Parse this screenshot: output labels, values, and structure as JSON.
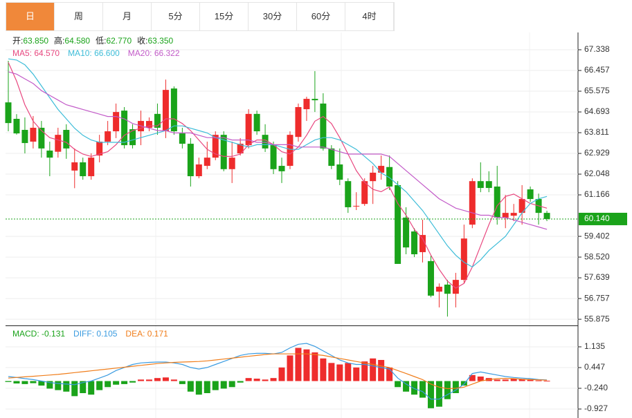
{
  "tabs": [
    "日",
    "周",
    "月",
    "5分",
    "15分",
    "30分",
    "60分",
    "4时"
  ],
  "active_tab": 0,
  "chart_data": [
    {
      "type": "candlestick",
      "info": [
        {
          "label": "开:",
          "value": "63.850"
        },
        {
          "label": "高:",
          "value": "64.580"
        },
        {
          "label": "低:",
          "value": "62.770"
        },
        {
          "label": "收:",
          "value": "63.350"
        }
      ],
      "up_color": "#ee2c2c",
      "down_color": "#1aa31a",
      "open": [
        65.1,
        64.4,
        63.93,
        63.43,
        64.02,
        63.05,
        63.0,
        63.93,
        62.2,
        62.55,
        61.96,
        62.84,
        63.43,
        63.87,
        64.75,
        63.96,
        63.87,
        64.02,
        64.61,
        63.87,
        65.69,
        63.78,
        63.34,
        61.96,
        62.4,
        62.75,
        63.72,
        62.26,
        62.93,
        63.28,
        64.61,
        63.72,
        63.28,
        62.4,
        62.4,
        63.63,
        64.81,
        65.25,
        65.05,
        63.14,
        62.46,
        61.75,
        60.7,
        60.78,
        61.75,
        62.11,
        62.35,
        61.58,
        60.2,
        59.61,
        58.73,
        58.35,
        57.05,
        57.35,
        56.96,
        57.55,
        59.9,
        61.75,
        61.75,
        61.52,
        60.2,
        60.28,
        60.4,
        61.4,
        60.99,
        60.4
      ],
      "high": [
        66.87,
        64.6,
        64.46,
        64.52,
        64.31,
        63.43,
        64.02,
        64.17,
        63.14,
        62.75,
        62.93,
        63.72,
        64.31,
        65.05,
        64.9,
        64.17,
        64.75,
        64.46,
        65.05,
        66.07,
        65.78,
        64.02,
        63.58,
        62.75,
        63.43,
        63.87,
        63.87,
        63.43,
        63.58,
        64.81,
        64.75,
        64.17,
        63.43,
        62.75,
        63.87,
        65.05,
        65.34,
        66.43,
        65.49,
        63.28,
        63.14,
        61.87,
        61.28,
        61.87,
        62.4,
        62.84,
        62.84,
        61.75,
        60.64,
        59.75,
        60.11,
        58.58,
        57.4,
        57.55,
        57.85,
        59.9,
        61.87,
        62.55,
        62.17,
        62.4,
        61.16,
        60.78,
        61.58,
        61.52,
        61.22,
        60.49
      ],
      "low": [
        63.87,
        63.73,
        62.93,
        63.14,
        62.75,
        61.96,
        62.75,
        62.7,
        61.45,
        61.81,
        61.81,
        62.55,
        63.28,
        63.58,
        63.14,
        63.14,
        63.28,
        63.87,
        63.72,
        63.58,
        63.72,
        63.14,
        61.52,
        61.87,
        62.26,
        62.64,
        62.17,
        61.67,
        62.84,
        63.14,
        63.72,
        62.99,
        62.05,
        61.67,
        62.26,
        63.43,
        64.31,
        64.69,
        63.05,
        62.26,
        61.58,
        60.4,
        60.52,
        60.7,
        60.78,
        61.81,
        61.37,
        58.23,
        58.64,
        58.52,
        58.29,
        56.81,
        56.38,
        55.99,
        56.38,
        57.4,
        59.75,
        61.28,
        61.28,
        59.9,
        59.75,
        60.05,
        59.9,
        60.87,
        59.9,
        60.05
      ],
      "close": [
        64.22,
        63.78,
        63.37,
        64.02,
        63.14,
        62.75,
        63.72,
        63.14,
        62.55,
        61.96,
        62.75,
        63.43,
        63.87,
        64.69,
        63.28,
        63.28,
        64.31,
        64.31,
        64.02,
        65.63,
        63.87,
        63.34,
        61.96,
        62.46,
        62.75,
        63.72,
        62.26,
        62.75,
        63.34,
        64.61,
        63.87,
        63.14,
        62.26,
        62.17,
        63.72,
        64.9,
        65.25,
        65.19,
        63.14,
        62.4,
        61.81,
        60.64,
        60.7,
        61.75,
        62.11,
        62.4,
        61.52,
        58.23,
        58.93,
        58.64,
        59.46,
        56.88,
        57.26,
        56.96,
        57.55,
        59.31,
        61.75,
        61.46,
        61.46,
        60.2,
        60.4,
        60.4,
        60.99,
        60.99,
        60.4,
        60.14
      ],
      "series": [
        {
          "name": "MA5",
          "legend_value": "64.570",
          "color": "#e8477f",
          "values": [
            66.8,
            66.0,
            65.0,
            64.3,
            63.9,
            63.6,
            63.5,
            63.4,
            63.1,
            62.9,
            62.8,
            62.9,
            63.0,
            63.3,
            63.7,
            63.9,
            64.0,
            64.1,
            64.1,
            64.4,
            64.4,
            64.2,
            63.9,
            63.5,
            63.1,
            62.9,
            62.8,
            62.8,
            62.9,
            63.3,
            63.5,
            63.5,
            63.3,
            63.0,
            62.9,
            63.2,
            63.7,
            64.3,
            64.5,
            64.2,
            63.6,
            62.9,
            62.2,
            61.7,
            61.4,
            61.3,
            61.5,
            60.8,
            60.3,
            59.7,
            59.3,
            58.6,
            58.0,
            57.5,
            57.2,
            57.4,
            58.1,
            59.0,
            59.9,
            60.7,
            61.1,
            61.2,
            61.0,
            60.8,
            60.7,
            60.6
          ]
        },
        {
          "name": "MA10",
          "legend_value": "66.600",
          "color": "#3cbcd8",
          "values": [
            66.95,
            66.9,
            66.7,
            66.3,
            65.8,
            65.3,
            64.8,
            64.4,
            64.0,
            63.7,
            63.5,
            63.4,
            63.4,
            63.4,
            63.4,
            63.5,
            63.6,
            63.7,
            63.8,
            63.9,
            64.1,
            64.1,
            64.0,
            63.9,
            63.8,
            63.6,
            63.5,
            63.4,
            63.3,
            63.2,
            63.3,
            63.3,
            63.3,
            63.2,
            63.1,
            63.1,
            63.3,
            63.5,
            63.6,
            63.6,
            63.5,
            63.3,
            63.1,
            62.8,
            62.5,
            62.1,
            61.9,
            61.6,
            61.3,
            60.9,
            60.5,
            60.0,
            59.5,
            59.0,
            58.6,
            58.3,
            58.1,
            58.4,
            58.8,
            59.1,
            59.4,
            59.9,
            60.4,
            60.8,
            61.0,
            61.1
          ]
        },
        {
          "name": "MA20",
          "legend_value": "66.322",
          "color": "#c25ac8",
          "values": [
            66.4,
            66.3,
            66.1,
            65.9,
            65.6,
            65.4,
            65.2,
            65.0,
            64.9,
            64.8,
            64.7,
            64.6,
            64.5,
            64.5,
            64.4,
            64.2,
            64.1,
            64.0,
            63.9,
            63.9,
            63.8,
            63.8,
            63.8,
            63.7,
            63.6,
            63.6,
            63.6,
            63.5,
            63.5,
            63.5,
            63.4,
            63.4,
            63.3,
            63.3,
            63.3,
            63.2,
            63.2,
            63.2,
            63.2,
            63.1,
            63.0,
            62.9,
            62.9,
            62.9,
            62.9,
            62.9,
            62.8,
            62.5,
            62.2,
            61.9,
            61.6,
            61.3,
            61.0,
            60.8,
            60.6,
            60.5,
            60.4,
            60.3,
            60.3,
            60.2,
            60.2,
            60.1,
            60.0,
            59.9,
            59.8,
            59.7
          ]
        }
      ],
      "last_price": {
        "value": 60.14,
        "label": "60.140"
      },
      "last_price_color": "#1aa31a",
      "ylim": [
        55.643,
        68.073
      ],
      "yticks": [
        67.338,
        66.457,
        65.575,
        64.693,
        63.811,
        62.929,
        62.048,
        61.166,
        59.402,
        {
          "value": 58.52,
          "label": "58.520"
        },
        57.639,
        56.757,
        55.875
      ],
      "grid": true
    },
    {
      "type": "macd",
      "name": "MACD",
      "legend_value": "-0.131",
      "up_color": "#ee2c2c",
      "down_color": "#1aa31a",
      "values": [
        -0.03,
        -0.08,
        -0.1,
        -0.07,
        -0.15,
        -0.25,
        -0.3,
        -0.35,
        -0.5,
        -0.4,
        -0.45,
        -0.3,
        -0.2,
        -0.12,
        -0.1,
        -0.05,
        0.05,
        0.05,
        0.1,
        0.12,
        0.05,
        -0.1,
        -0.35,
        -0.45,
        -0.4,
        -0.3,
        -0.25,
        -0.2,
        -0.05,
        0.1,
        0.08,
        0.05,
        0.1,
        0.45,
        0.85,
        1.1,
        1.05,
        0.95,
        0.75,
        0.6,
        0.55,
        0.6,
        0.45,
        0.65,
        0.75,
        0.7,
        0.45,
        -0.2,
        -0.35,
        -0.45,
        -0.55,
        -0.9,
        -0.85,
        -0.6,
        -0.4,
        -0.15,
        0.2,
        0.15,
        0.1,
        0.05,
        0.05,
        0.08,
        0.06,
        0.04,
        0.02,
        0.01
      ],
      "series": [
        {
          "name": "DIFF",
          "legend_value": "0.105",
          "color": "#3a9be0",
          "values": [
            0.15,
            0.12,
            0.08,
            0.05,
            0.0,
            -0.05,
            -0.08,
            -0.1,
            -0.12,
            -0.05,
            0.0,
            0.1,
            0.2,
            0.35,
            0.45,
            0.55,
            0.6,
            0.62,
            0.63,
            0.63,
            0.6,
            0.55,
            0.45,
            0.4,
            0.45,
            0.55,
            0.65,
            0.75,
            0.85,
            0.9,
            0.92,
            0.92,
            0.9,
            0.95,
            1.1,
            1.22,
            1.25,
            1.15,
            1.0,
            0.85,
            0.7,
            0.6,
            0.55,
            0.55,
            0.5,
            0.45,
            0.4,
            0.1,
            -0.1,
            -0.25,
            -0.35,
            -0.6,
            -0.6,
            -0.45,
            -0.3,
            -0.1,
            0.25,
            0.3,
            0.25,
            0.2,
            0.15,
            0.12,
            0.1,
            0.08,
            0.05,
            0.04
          ]
        },
        {
          "name": "DEA",
          "legend_value": "0.171",
          "color": "#f07d1a",
          "values": [
            0.1,
            0.12,
            0.14,
            0.16,
            0.18,
            0.2,
            0.22,
            0.25,
            0.28,
            0.31,
            0.34,
            0.37,
            0.4,
            0.43,
            0.46,
            0.49,
            0.52,
            0.55,
            0.58,
            0.6,
            0.62,
            0.63,
            0.64,
            0.65,
            0.67,
            0.7,
            0.73,
            0.76,
            0.79,
            0.82,
            0.85,
            0.88,
            0.9,
            0.9,
            0.9,
            0.9,
            0.9,
            0.88,
            0.85,
            0.8,
            0.75,
            0.7,
            0.65,
            0.6,
            0.55,
            0.5,
            0.45,
            0.35,
            0.25,
            0.15,
            0.05,
            -0.1,
            -0.2,
            -0.25,
            -0.24,
            -0.2,
            -0.1,
            0.0,
            0.05,
            0.08,
            0.09,
            0.08,
            0.06,
            0.05,
            0.04,
            0.03
          ]
        }
      ],
      "ylim": [
        -1.11,
        1.753
      ],
      "yticks": [
        1.135,
        0.447,
        {
          "value": -0.24,
          "label": "-0.240"
        },
        -0.927
      ],
      "grid": true
    }
  ]
}
